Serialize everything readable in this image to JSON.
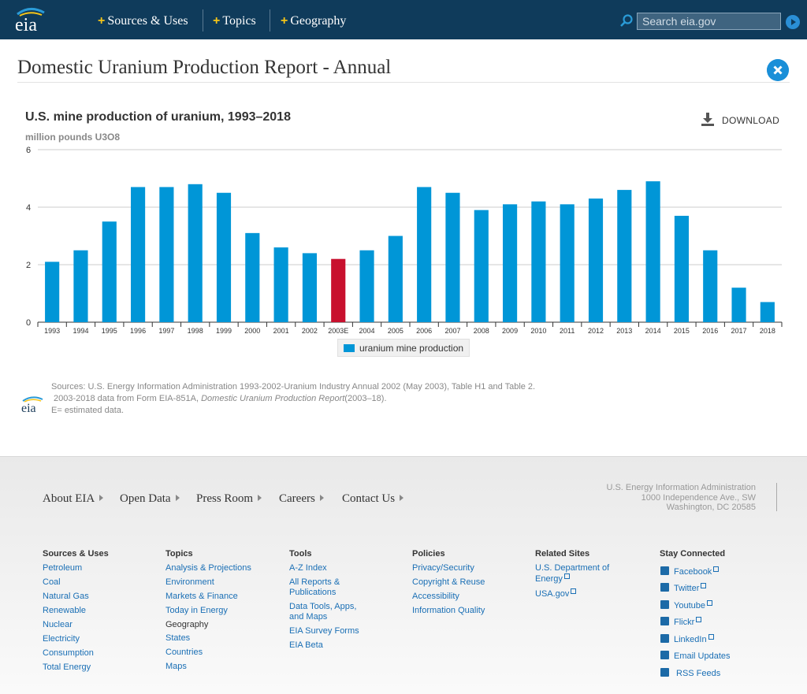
{
  "header": {
    "nav": [
      "Sources & Uses",
      "Topics",
      "Geography"
    ],
    "search_placeholder": "Search eia.gov"
  },
  "page": {
    "title": "Domestic Uranium Production Report - Annual"
  },
  "chart_header": {
    "title": "U.S. mine production of uranium, 1993–2018",
    "units": "million pounds U3O8",
    "download_label": "DOWNLOAD"
  },
  "chart_data": {
    "type": "bar",
    "title": "U.S. mine production of uranium, 1993–2018",
    "ylabel": "million pounds U3O8",
    "xlabel": "",
    "ylim": [
      0,
      6
    ],
    "yticks": [
      0,
      2,
      4,
      6
    ],
    "grid": true,
    "legend": "bottom-center",
    "categories": [
      "1993",
      "1994",
      "1995",
      "1996",
      "1997",
      "1998",
      "1999",
      "2000",
      "2001",
      "2002",
      "2003E",
      "2004",
      "2005",
      "2006",
      "2007",
      "2008",
      "2009",
      "2010",
      "2011",
      "2012",
      "2013",
      "2014",
      "2015",
      "2016",
      "2017",
      "2018"
    ],
    "series": [
      {
        "name": "uranium mine production",
        "values": [
          2.1,
          2.5,
          3.5,
          4.7,
          4.7,
          4.8,
          4.5,
          3.1,
          2.6,
          2.4,
          2.2,
          2.5,
          3.0,
          4.7,
          4.5,
          3.9,
          4.1,
          4.2,
          4.1,
          4.3,
          4.6,
          4.9,
          3.7,
          2.5,
          1.2,
          0.7
        ]
      }
    ],
    "colors": {
      "bar": "#0096d7",
      "estimated": "#c8102e"
    },
    "estimated_category": "2003E"
  },
  "sources": {
    "line1": "Sources: U.S. Energy Information Administration 1993-2002-Uranium Industry Annual 2002 (May 2003), Table H1 and Table 2.",
    "line2_prefix": "2003-2018 data from Form EIA-851A, ",
    "line2_italic": "Domestic Uranium Production Report",
    "line2_suffix": "(2003–18).",
    "line3": "E= estimated data."
  },
  "footer": {
    "nav": [
      "About EIA",
      "Open Data",
      "Press Room",
      "Careers",
      "Contact Us"
    ],
    "address": [
      "U.S. Energy Information Administration",
      "1000 Independence Ave., SW",
      "Washington, DC 20585"
    ],
    "columns": {
      "sources_uses": {
        "heading": "Sources & Uses",
        "links": [
          "Petroleum",
          "Coal",
          "Natural Gas",
          "Renewable",
          "Nuclear",
          "Electricity",
          "Consumption",
          "Total Energy"
        ]
      },
      "topics": {
        "heading": "Topics",
        "links": [
          "Analysis & Projections",
          "Environment",
          "Markets & Finance",
          "Today in Energy"
        ],
        "subheading": "Geography",
        "sublinks": [
          "States",
          "Countries",
          "Maps"
        ]
      },
      "tools": {
        "heading": "Tools",
        "links": [
          "A-Z Index",
          "All Reports & Publications",
          "Data Tools, Apps, and Maps",
          "EIA Survey Forms",
          "EIA Beta"
        ]
      },
      "policies": {
        "heading": "Policies",
        "links": [
          "Privacy/Security",
          "Copyright & Reuse",
          "Accessibility",
          "Information Quality"
        ]
      },
      "related": {
        "heading": "Related Sites",
        "links": [
          "U.S. Department of Energy",
          "USA.gov"
        ]
      },
      "stay_connected": {
        "heading": "Stay Connected",
        "links": [
          "Facebook",
          "Twitter",
          "Youtube",
          "Flickr",
          "LinkedIn",
          "Email Updates",
          "RSS Feeds"
        ]
      }
    }
  }
}
